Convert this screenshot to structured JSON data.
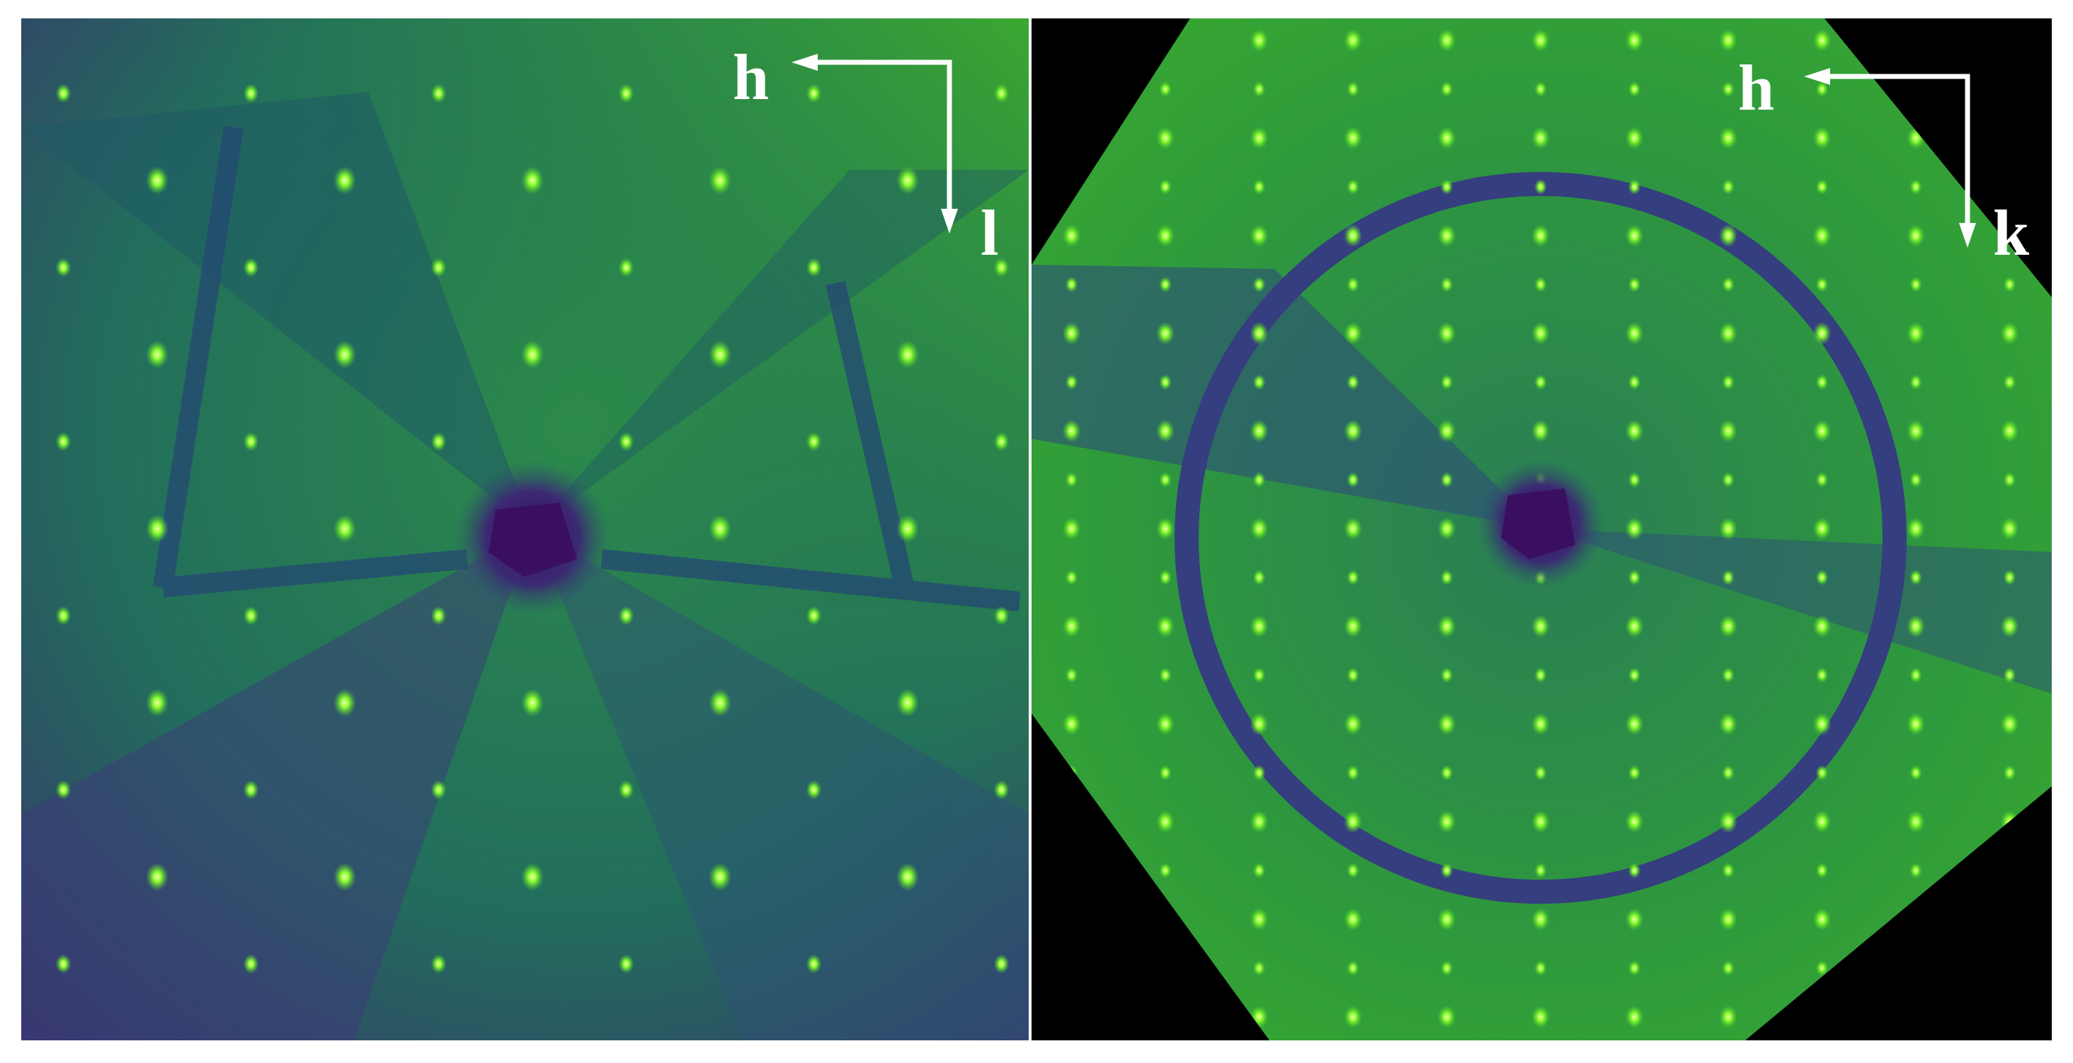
{
  "panels": [
    {
      "labels": {
        "horizontal": "h",
        "vertical": "l"
      }
    },
    {
      "labels": {
        "horizontal": "h",
        "vertical": "k"
      }
    }
  ]
}
